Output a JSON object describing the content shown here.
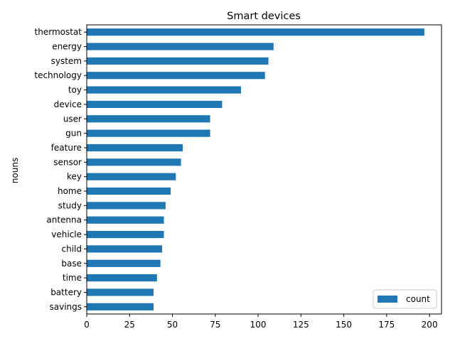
{
  "chart_data": {
    "type": "bar",
    "orientation": "horizontal",
    "title": "Smart devices",
    "xlabel": "",
    "ylabel": "nouns",
    "xlim": [
      0,
      207
    ],
    "xticks": [
      0,
      25,
      50,
      75,
      100,
      125,
      150,
      175,
      200
    ],
    "grid": false,
    "legend_position": "lower-right",
    "categories": [
      "thermostat",
      "energy",
      "system",
      "technology",
      "toy",
      "device",
      "user",
      "gun",
      "feature",
      "sensor",
      "key",
      "home",
      "study",
      "antenna",
      "vehicle",
      "child",
      "base",
      "time",
      "battery",
      "savings"
    ],
    "series": [
      {
        "name": "count",
        "color": "#1f77b4",
        "values": [
          197,
          109,
          106,
          104,
          90,
          79,
          72,
          72,
          56,
          55,
          52,
          49,
          46,
          45,
          45,
          44,
          43,
          41,
          39,
          39
        ]
      }
    ]
  }
}
